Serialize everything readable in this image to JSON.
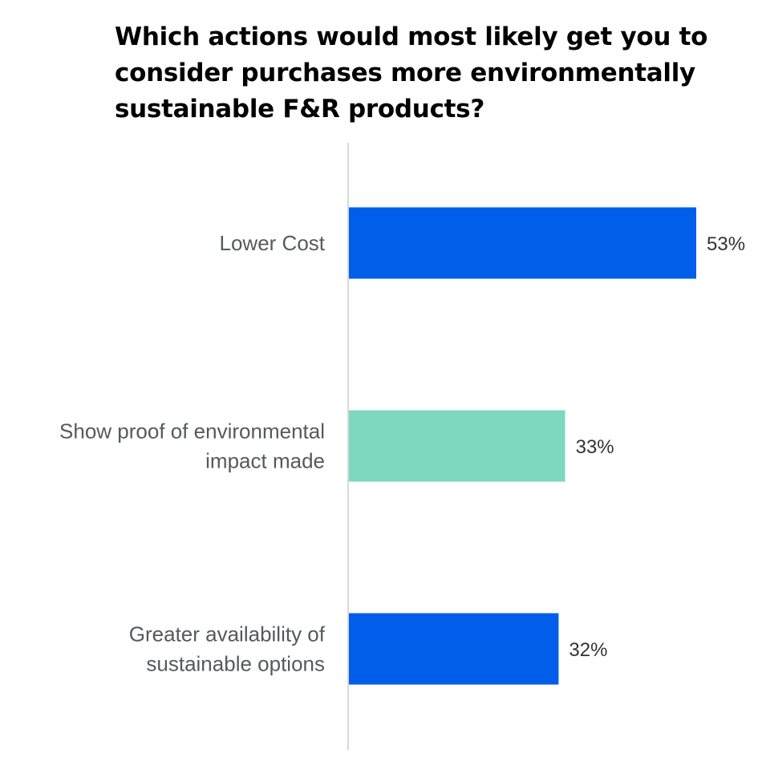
{
  "chart_data": {
    "type": "bar",
    "orientation": "horizontal",
    "title": "Which actions would most likely get you to consider purchases more environmentally sustainable F&R products?",
    "categories": [
      [
        "Lower Cost"
      ],
      [
        "Show proof of environmental",
        "impact made"
      ],
      [
        "Greater availability of",
        "sustainable options"
      ]
    ],
    "values": [
      53,
      33,
      32
    ],
    "value_labels": [
      "53%",
      "33%",
      "32%"
    ],
    "colors": [
      "#005eeb",
      "#7dd8bf",
      "#005eeb"
    ],
    "xlim": [
      0,
      53
    ],
    "grid": false,
    "axis_line_color": "#d9d9d9"
  }
}
